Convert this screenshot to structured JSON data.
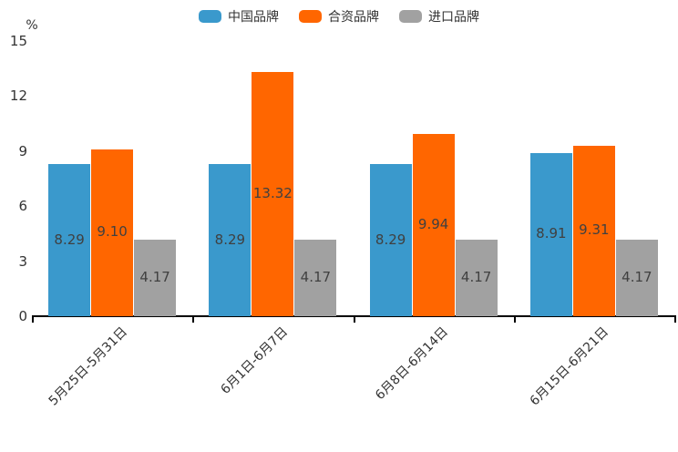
{
  "legend": {
    "items": [
      {
        "label": "中国品牌",
        "color": "#3A99CC"
      },
      {
        "label": "合资品牌",
        "color": "#FF6600"
      },
      {
        "label": "进口品牌",
        "color": "#A1A1A1"
      }
    ]
  },
  "chart_data": {
    "type": "bar",
    "title": "",
    "unit_label": "%",
    "categories": [
      "5月25日-5月31日",
      "6月1日-6月7日",
      "6月8日-6月14日",
      "6月15日-6月21日"
    ],
    "series": [
      {
        "name": "中国品牌",
        "color": "#3A99CC",
        "values": [
          8.29,
          8.29,
          8.29,
          8.91
        ]
      },
      {
        "name": "合资品牌",
        "color": "#FF6600",
        "values": [
          9.1,
          13.32,
          9.94,
          9.31
        ]
      },
      {
        "name": "进口品牌",
        "color": "#A1A1A1",
        "values": [
          4.17,
          4.17,
          4.17,
          4.17
        ]
      }
    ],
    "value_labels": [
      [
        "8.29",
        "9.10",
        "4.17"
      ],
      [
        "8.29",
        "13.32",
        "4.17"
      ],
      [
        "8.29",
        "9.94",
        "4.17"
      ],
      [
        "8.91",
        "9.31",
        "4.17"
      ]
    ],
    "xlabel": "",
    "ylabel": "%",
    "ylim": [
      0,
      15
    ],
    "yticks": [
      0,
      3,
      6,
      9,
      12,
      15
    ],
    "grid": false,
    "legend_position": "top",
    "value_label_position": "inside-center",
    "value_label_color": "#404040",
    "axis_color": "#000000"
  }
}
